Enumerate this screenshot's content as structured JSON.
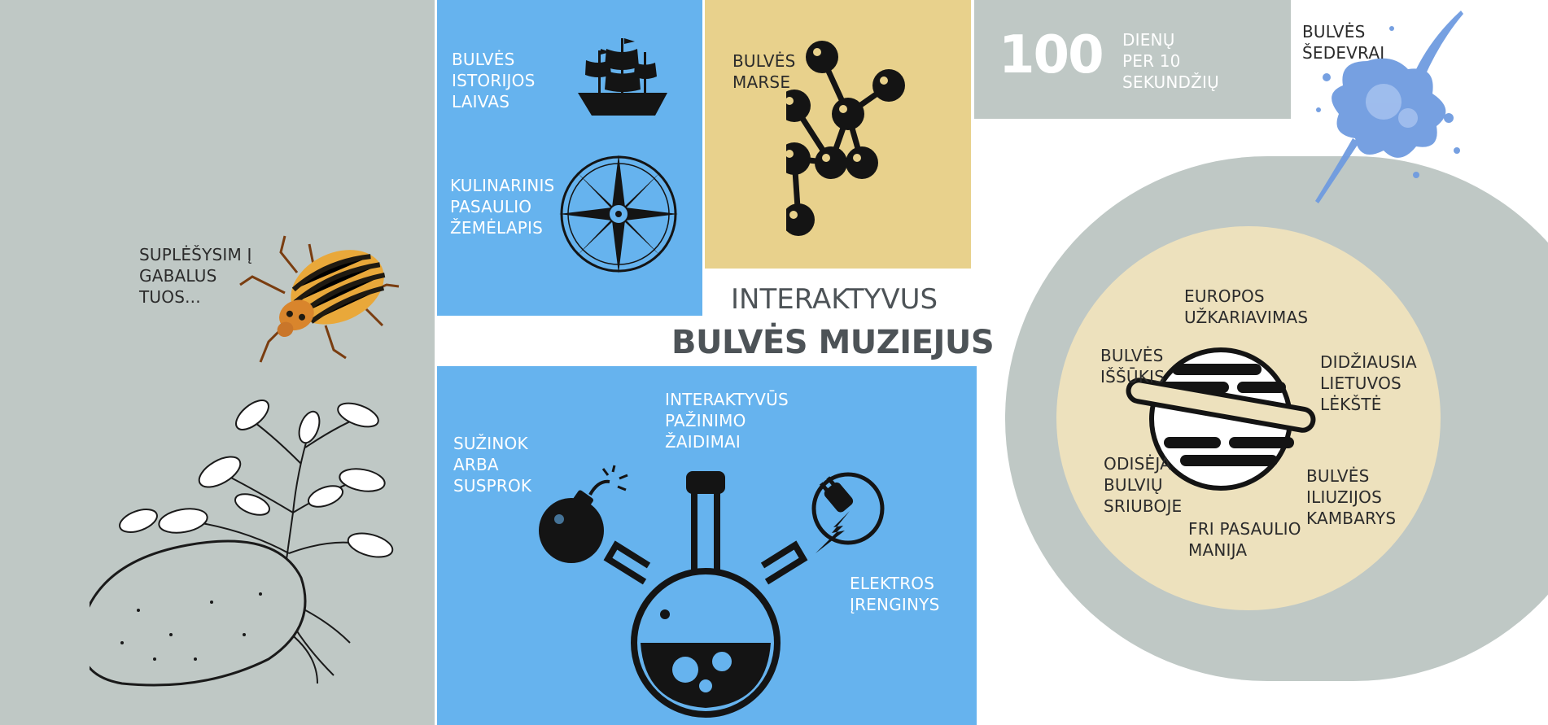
{
  "beetle_panel": {
    "bg": "#bfc8c5",
    "label": [
      "SUPLĖŠYSIM Į",
      "GABALUS",
      "TUOS..."
    ]
  },
  "ship_panel": {
    "bg": "#66b3ee",
    "ship_label": [
      "BULVĖS",
      "ISTORIJOS",
      "LAIVAS"
    ],
    "map_label": [
      "KULINARINIS",
      "PASAULIO",
      "ŽEMĖLAPIS"
    ]
  },
  "mars_panel": {
    "bg": "#e8d18c",
    "label": [
      "BULVĖS",
      "MARSE"
    ]
  },
  "stats_panel": {
    "bg": "#bfc8c5",
    "number": "100",
    "label": [
      "DIENŲ",
      "PER 10",
      "SEKUNDŽIŲ"
    ]
  },
  "masterpieces": {
    "label": [
      "BULVĖS",
      "ŠEDEVRAI"
    ],
    "splash_color": "#6f9be0"
  },
  "title": {
    "line1": "INTERAKTYVUS",
    "line2": "BULVĖS MUZIEJUS"
  },
  "games_panel": {
    "bg": "#66b3ee",
    "learn_label": [
      "SUŽINOK",
      "ARBA",
      "SUSPROK"
    ],
    "games_label": [
      "INTERAKTYVŪS",
      "PAŽINIMO",
      "ŽAIDIMAI"
    ],
    "electric_label": [
      "ELEKTROS",
      "ĮRENGINYS"
    ]
  },
  "planet_circle": {
    "ring_color": "#bfc8c5",
    "disc_color": "#ede1bd",
    "items": {
      "europe": [
        "EUROPOS",
        "UŽKARIAVIMAS"
      ],
      "challenge": [
        "BULVĖS",
        "IŠŠŪKIS"
      ],
      "plate": [
        "DIDŽIAUSIA",
        "LIETUVOS",
        "LĖKŠTĖ"
      ],
      "odyssey": [
        "ODISĖJA",
        "BULVIŲ",
        "SRIUBOJE"
      ],
      "illusion": [
        "BULVĖS",
        "ILIUZIJOS",
        "KAMBARYS"
      ],
      "fries": [
        "FRI PASAULIO",
        "MANIJA"
      ]
    }
  }
}
